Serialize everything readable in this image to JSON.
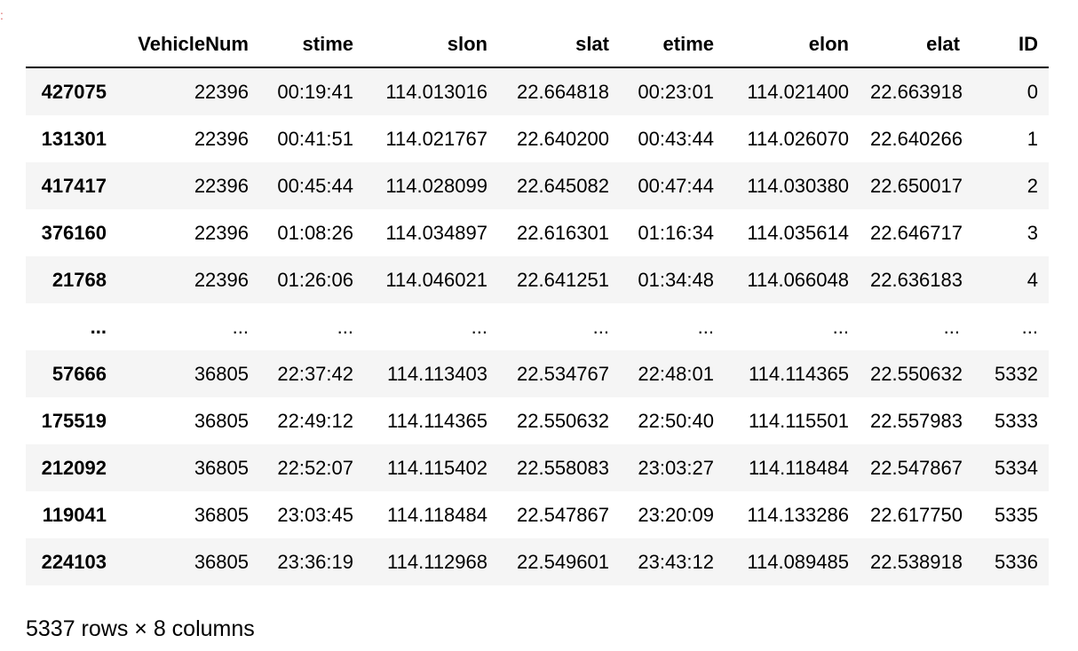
{
  "table": {
    "columns": [
      "",
      "VehicleNum",
      "stime",
      "slon",
      "slat",
      "etime",
      "elon",
      "elat",
      "ID"
    ],
    "rows": [
      [
        "427075",
        "22396",
        "00:19:41",
        "114.013016",
        "22.664818",
        "00:23:01",
        "114.021400",
        "22.663918",
        "0"
      ],
      [
        "131301",
        "22396",
        "00:41:51",
        "114.021767",
        "22.640200",
        "00:43:44",
        "114.026070",
        "22.640266",
        "1"
      ],
      [
        "417417",
        "22396",
        "00:45:44",
        "114.028099",
        "22.645082",
        "00:47:44",
        "114.030380",
        "22.650017",
        "2"
      ],
      [
        "376160",
        "22396",
        "01:08:26",
        "114.034897",
        "22.616301",
        "01:16:34",
        "114.035614",
        "22.646717",
        "3"
      ],
      [
        "21768",
        "22396",
        "01:26:06",
        "114.046021",
        "22.641251",
        "01:34:48",
        "114.066048",
        "22.636183",
        "4"
      ],
      [
        "...",
        "...",
        "...",
        "...",
        "...",
        "...",
        "...",
        "...",
        "..."
      ],
      [
        "57666",
        "36805",
        "22:37:42",
        "114.113403",
        "22.534767",
        "22:48:01",
        "114.114365",
        "22.550632",
        "5332"
      ],
      [
        "175519",
        "36805",
        "22:49:12",
        "114.114365",
        "22.550632",
        "22:50:40",
        "114.115501",
        "22.557983",
        "5333"
      ],
      [
        "212092",
        "36805",
        "22:52:07",
        "114.115402",
        "22.558083",
        "23:03:27",
        "114.118484",
        "22.547867",
        "5334"
      ],
      [
        "119041",
        "36805",
        "23:03:45",
        "114.118484",
        "22.547867",
        "23:20:09",
        "114.133286",
        "22.617750",
        "5335"
      ],
      [
        "224103",
        "36805",
        "23:36:19",
        "114.112968",
        "22.549601",
        "23:43:12",
        "114.089485",
        "22.538918",
        "5336"
      ]
    ]
  },
  "footer": {
    "shape_text": "5337 rows × 8 columns"
  },
  "marker": ":"
}
